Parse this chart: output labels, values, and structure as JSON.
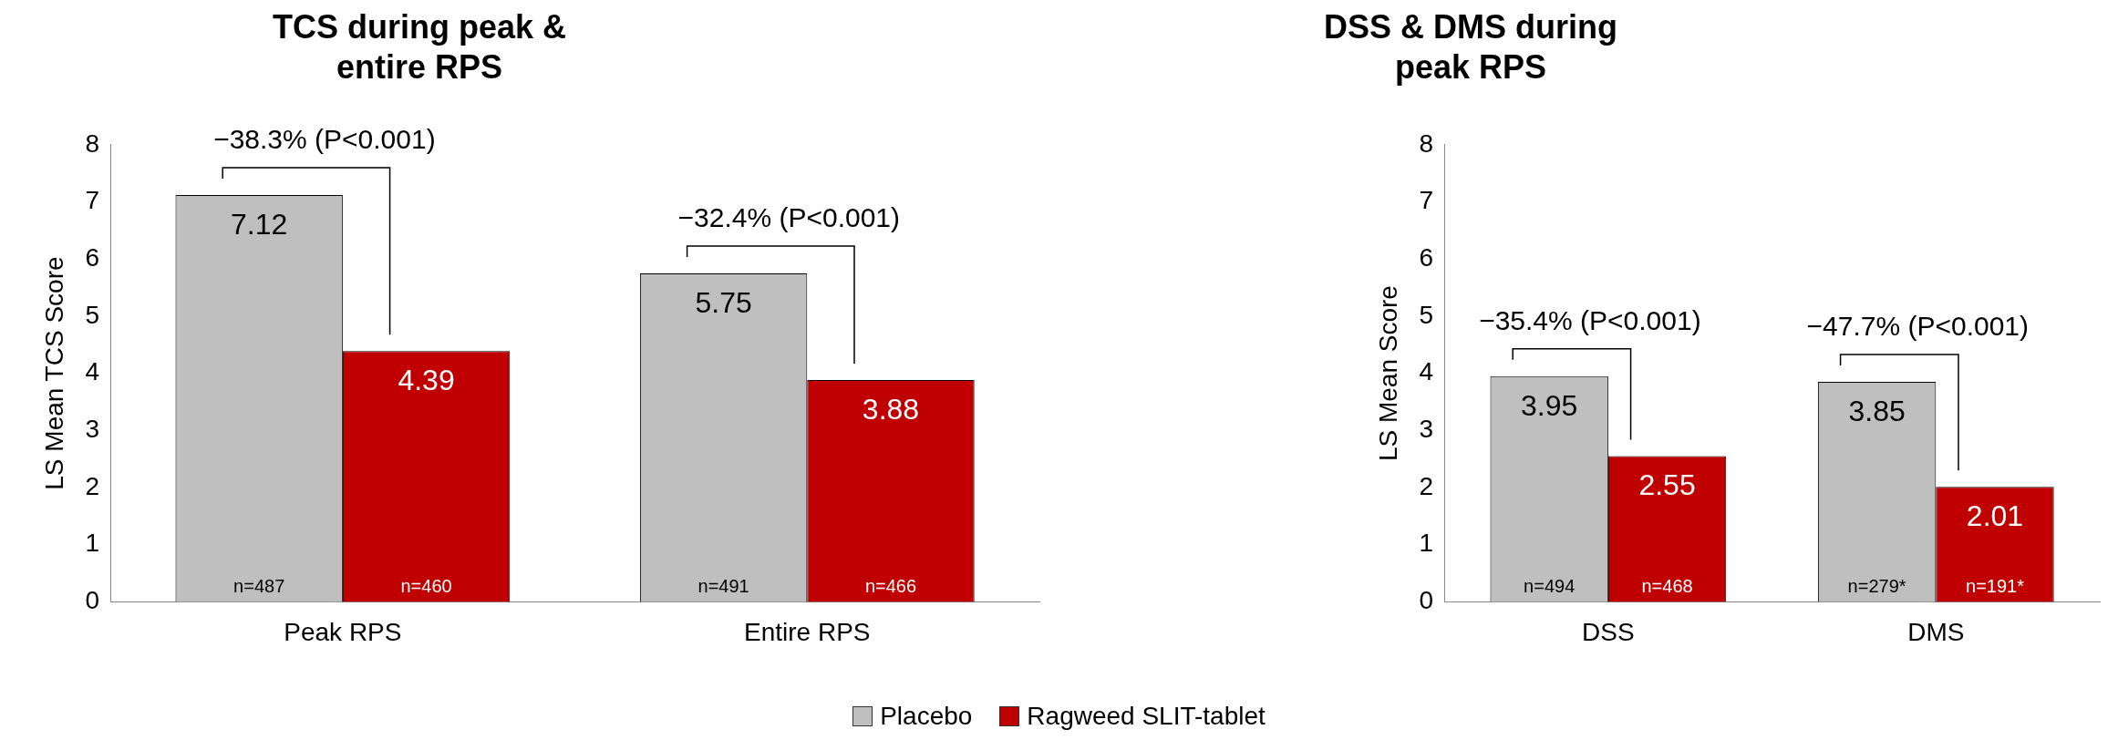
{
  "chart_data": [
    {
      "type": "bar",
      "title": "TCS during peak & entire RPS",
      "ylabel": "LS Mean TCS Score",
      "categories": [
        "Peak RPS",
        "Entire RPS"
      ],
      "series": [
        {
          "name": "Placebo",
          "color": "#bfbfbf",
          "values": [
            7.12,
            5.75
          ]
        },
        {
          "name": "Ragweed SLIT-tablet",
          "color": "#c00000",
          "values": [
            4.39,
            3.88
          ]
        }
      ],
      "data_labels": true,
      "ylim": [
        0,
        8
      ],
      "yticks": [
        0,
        1,
        2,
        3,
        4,
        5,
        6,
        7,
        8
      ],
      "grid": false,
      "legend": "bottom",
      "annotations": [
        {
          "text": "−38.3% (P<0.001)",
          "x": "Peak RPS",
          "y": 7.12
        },
        {
          "text": "−32.4% (P<0.001)",
          "x": "Entire RPS",
          "y": 5.75
        },
        "n=487",
        "n=460",
        "n=491",
        "n=466"
      ]
    },
    {
      "type": "bar",
      "title": "DSS & DMS during peak RPS",
      "ylabel": "LS Mean Score",
      "categories": [
        "DSS",
        "DMS"
      ],
      "series": [
        {
          "color": "#bfbfbf",
          "values": [
            3.95,
            3.85
          ]
        },
        {
          "color": "#c00000",
          "values": [
            2.55,
            2.01
          ]
        }
      ],
      "data_labels": true,
      "ylim": [
        0,
        8
      ],
      "yticks": [
        0,
        1,
        2,
        3,
        4,
        5,
        6,
        7,
        8
      ],
      "grid": false,
      "annotations": [
        {
          "text": "−35.4% (P<0.001)",
          "x": "DSS",
          "y": 3.95
        },
        {
          "text": "−47.7% (P<0.001)",
          "x": "DMS",
          "y": 3.85
        },
        "n=494",
        "n=468",
        "n=279*",
        "n=191*"
      ]
    }
  ]
}
